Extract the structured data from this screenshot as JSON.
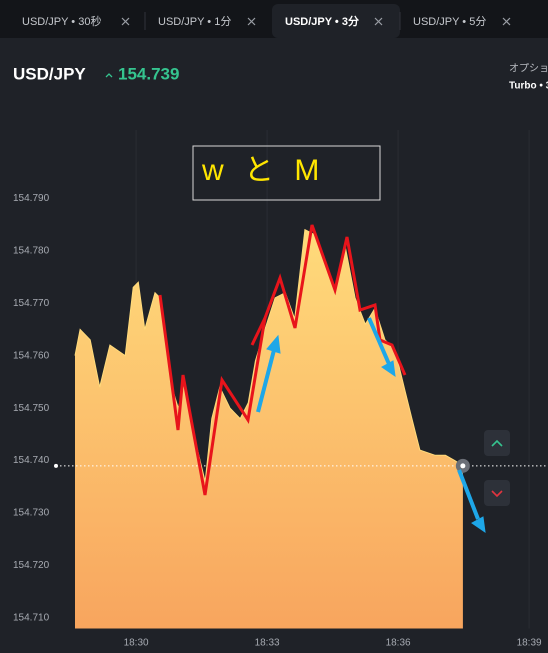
{
  "tabs": [
    "USD/JPY • 30秒",
    "USD/JPY • 1分",
    "USD/JPY • 3分",
    "USD/JPY • 5分"
  ],
  "header": {
    "symbol": "USD/JPY",
    "option_label": "オプショ",
    "mode_label": "Turbo • 3"
  },
  "chart_data": {
    "type": "area",
    "annotation": "w と M",
    "current_price": 154.739,
    "x": [
      "18:28:36",
      "18:28:43",
      "18:28:57",
      "18:29:10",
      "18:29:24",
      "18:29:45",
      "18:29:56",
      "18:30:03",
      "18:30:12",
      "18:30:26",
      "18:30:33",
      "18:30:47",
      "18:30:58",
      "18:31:07",
      "18:31:21",
      "18:31:35",
      "18:31:44",
      "18:31:55",
      "18:32:09",
      "18:32:23",
      "18:32:34",
      "18:32:44",
      "18:32:57",
      "18:33:11",
      "18:33:25",
      "18:33:38",
      "18:33:52",
      "18:34:06",
      "18:34:20",
      "18:34:33",
      "18:34:47",
      "18:35:01",
      "18:35:15",
      "18:35:28",
      "18:35:42",
      "18:35:56",
      "18:36:10",
      "18:36:19",
      "18:36:30",
      "18:36:51",
      "18:37:05",
      "18:37:18",
      "18:37:29"
    ],
    "values": [
      154.76,
      154.765,
      154.763,
      154.754,
      154.762,
      154.76,
      154.773,
      154.774,
      154.765,
      154.772,
      154.771,
      154.755,
      154.75,
      154.755,
      154.744,
      154.736,
      154.748,
      154.754,
      154.75,
      154.748,
      154.751,
      154.759,
      154.765,
      154.771,
      154.772,
      154.767,
      154.784,
      154.783,
      154.777,
      154.772,
      154.781,
      154.771,
      154.766,
      154.769,
      154.763,
      154.761,
      154.753,
      154.748,
      154.742,
      154.741,
      154.741,
      154.74,
      154.739
    ],
    "colors": [
      "#ffdb7b",
      "#f8a55e"
    ],
    "xlim": [
      "18:26:53",
      "18:39:26"
    ],
    "xticks": [
      "18:30",
      "18:33",
      "18:36",
      "18:39"
    ],
    "ylim": [
      154.708,
      154.803
    ],
    "yticks": [
      {
        "value": 154.79,
        "label": "154.790"
      },
      {
        "value": 154.78,
        "label": "154.780"
      },
      {
        "value": 154.77,
        "label": "154.770"
      },
      {
        "value": 154.76,
        "label": "154.760"
      },
      {
        "value": 154.75,
        "label": "154.750"
      },
      {
        "value": 154.74,
        "label": "154.740"
      },
      {
        "value": 154.73,
        "label": "154.730"
      },
      {
        "value": 154.72,
        "label": "154.720"
      },
      {
        "value": 154.71,
        "label": "154.710"
      }
    ],
    "grid": true
  }
}
